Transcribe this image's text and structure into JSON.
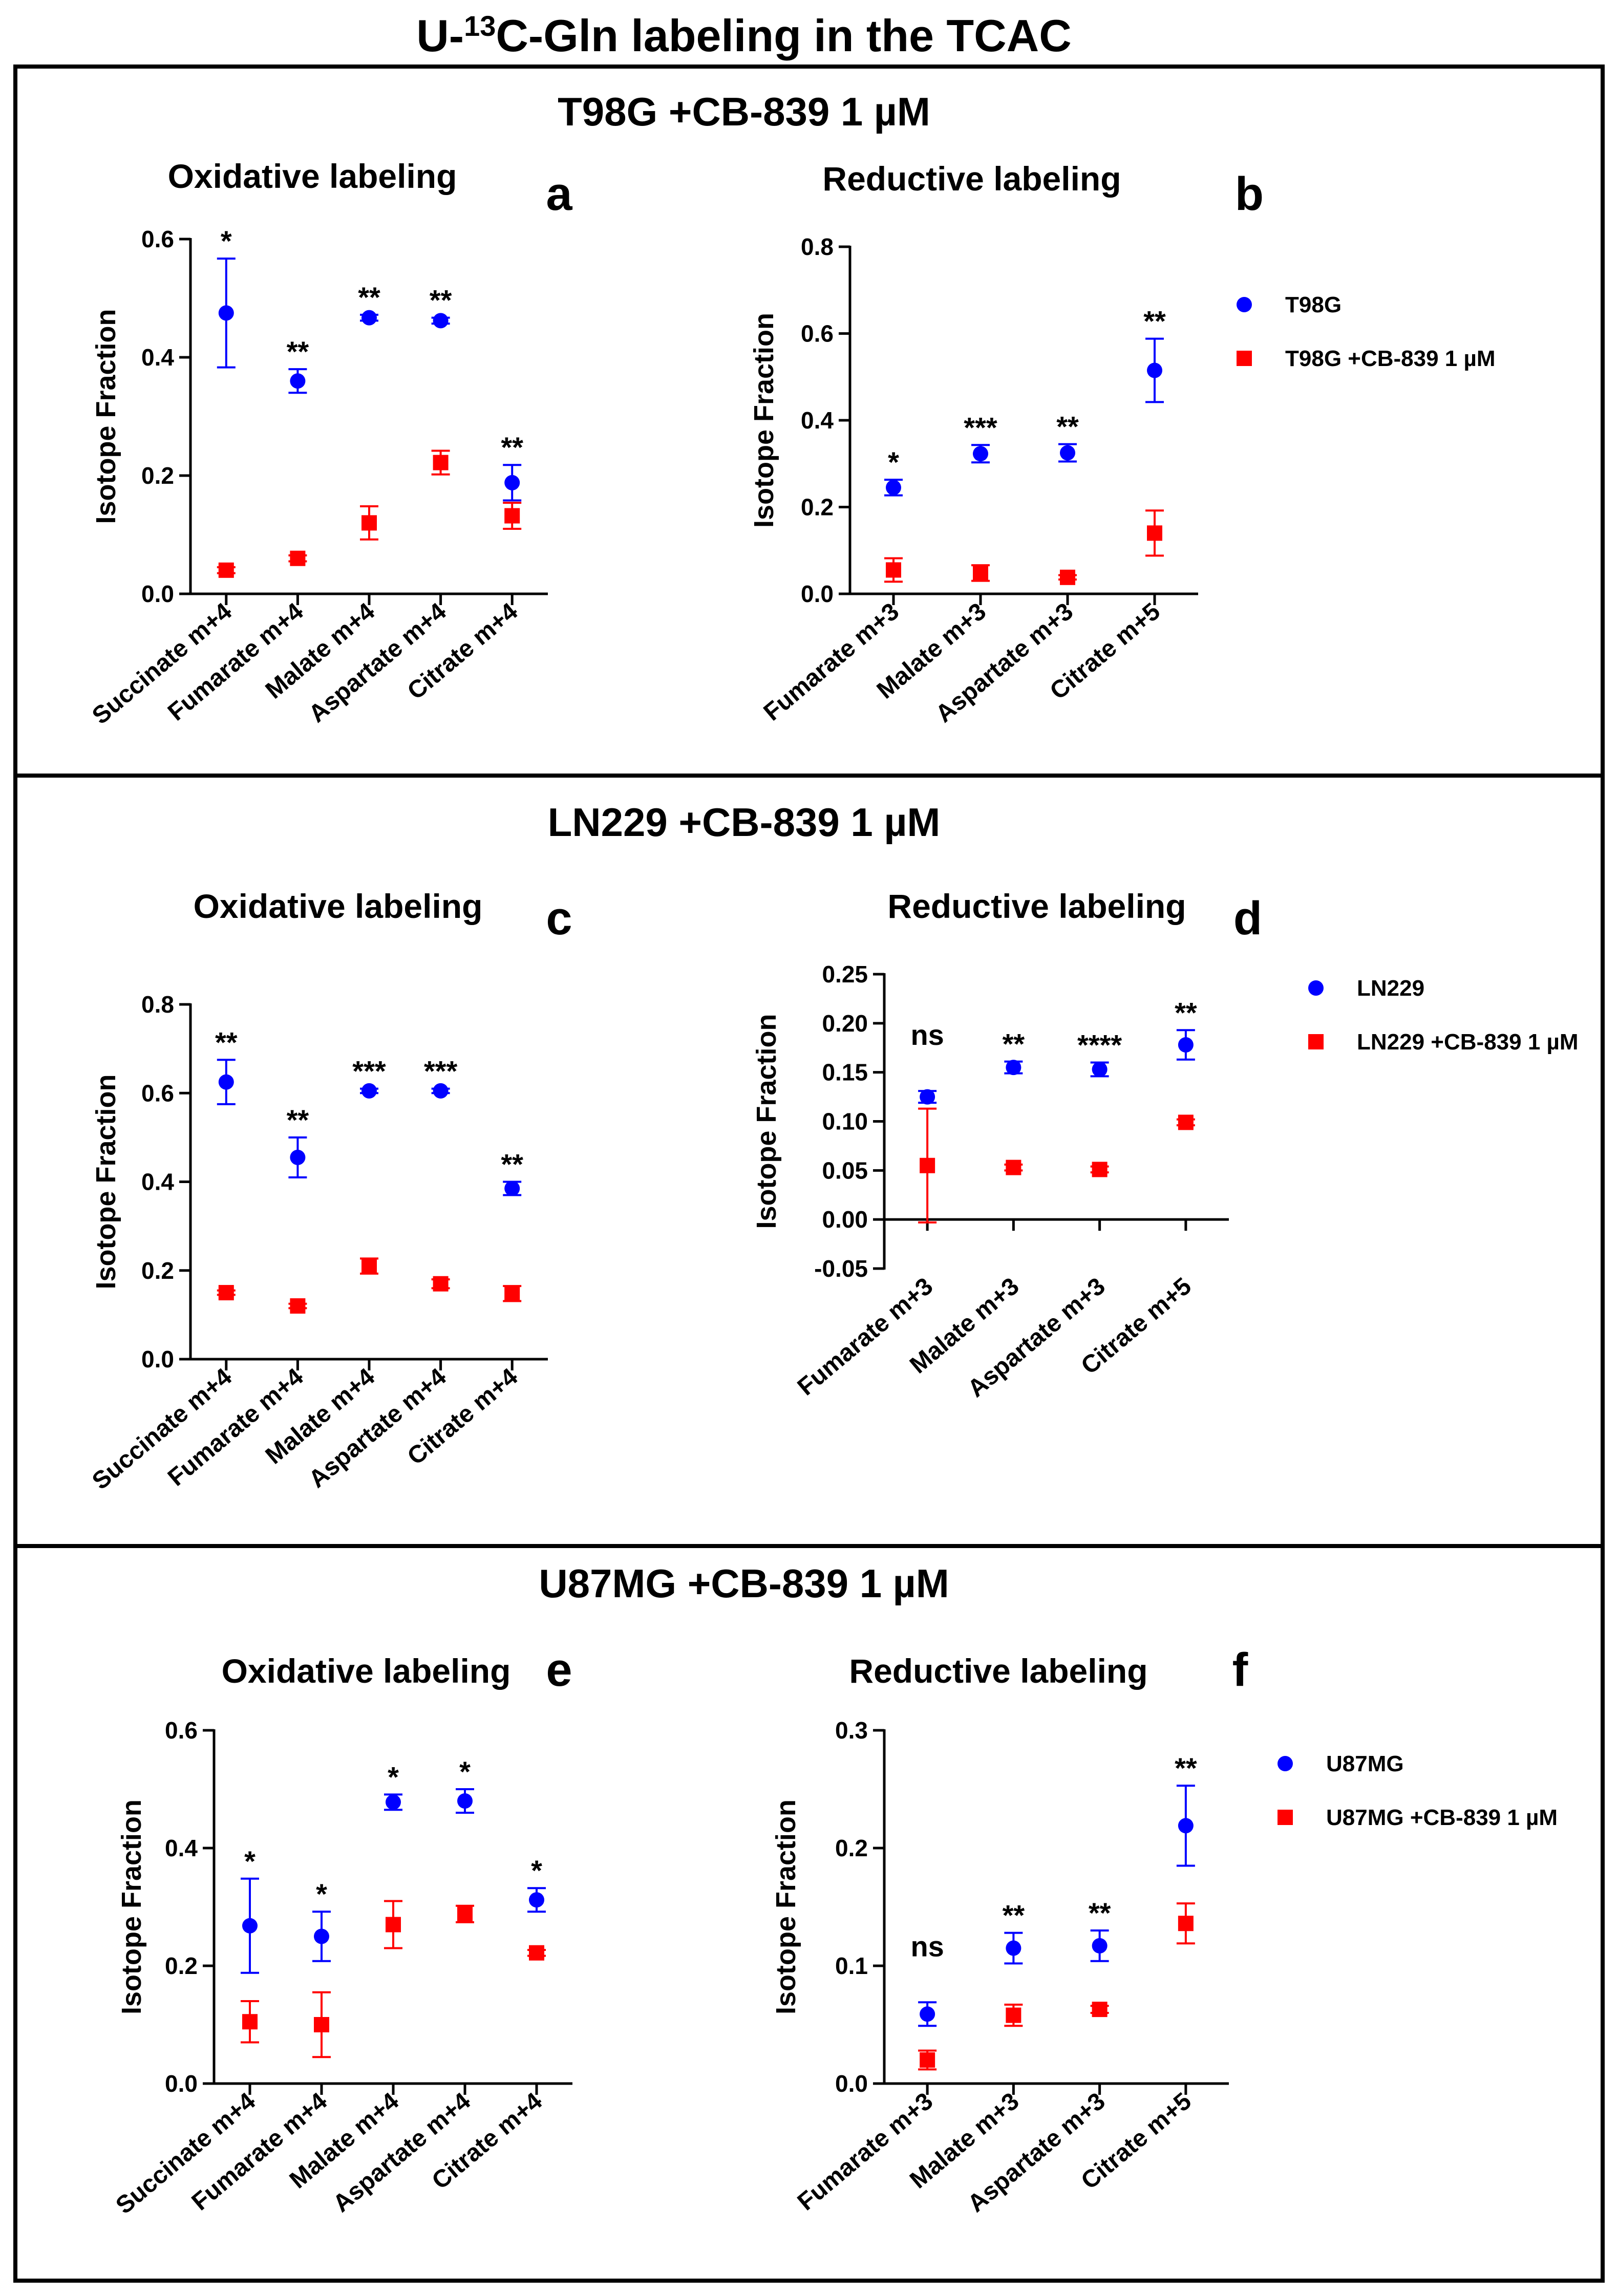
{
  "title": {
    "prefix": "U-",
    "sup": "13",
    "suffix": "C-Gln labeling in the TCAC"
  },
  "colors": {
    "control": "#0000ff",
    "treated": "#ff0000",
    "axis": "#000000"
  },
  "marker_shapes": {
    "control": "circle",
    "treated": "square"
  },
  "panels": [
    {
      "title": "T98G +CB-839 1 µM",
      "legend": [
        "T98G",
        "T98G +CB-839 1 µM"
      ],
      "charts": [
        {
          "letter": "a",
          "chart_data": {
            "type": "scatter",
            "title": "Oxidative labeling",
            "ylabel": "Isotope Fraction",
            "xlabel": "",
            "ylim": [
              0,
              0.6
            ],
            "yticks": [
              0,
              0.2,
              0.4,
              0.6
            ],
            "ytick_labels": [
              "0.0",
              "0.2",
              "0.4",
              "0.6"
            ],
            "categories": [
              "Succinate m+4",
              "Fumarate m+4",
              "Malate m+4",
              "Aspartate m+4",
              "Citrate m+4"
            ],
            "significance": [
              "*",
              "**",
              "**",
              "**",
              "**"
            ],
            "series": [
              {
                "name": "T98G",
                "values": [
                  0.475,
                  0.36,
                  0.467,
                  0.462,
                  0.188
                ],
                "errors": [
                  0.092,
                  0.02,
                  0.005,
                  0.005,
                  0.03
                ]
              },
              {
                "name": "T98G +CB-839 1 µM",
                "values": [
                  0.04,
                  0.06,
                  0.12,
                  0.222,
                  0.132
                ],
                "errors": [
                  0.005,
                  0.005,
                  0.028,
                  0.02,
                  0.022
                ]
              }
            ]
          }
        },
        {
          "letter": "b",
          "chart_data": {
            "type": "scatter",
            "title": "Reductive labeling",
            "ylabel": "Isotope Fraction",
            "xlabel": "",
            "ylim": [
              0,
              0.8
            ],
            "yticks": [
              0,
              0.2,
              0.4,
              0.6,
              0.8
            ],
            "ytick_labels": [
              "0.0",
              "0.2",
              "0.4",
              "0.6",
              "0.8"
            ],
            "categories": [
              "Fumarate m+3",
              "Malate m+3",
              "Aspartate m+3",
              "Citrate m+5"
            ],
            "significance": [
              "*",
              "***",
              "**",
              "**"
            ],
            "series": [
              {
                "name": "T98G",
                "values": [
                  0.245,
                  0.323,
                  0.325,
                  0.515
                ],
                "errors": [
                  0.018,
                  0.02,
                  0.02,
                  0.073
                ]
              },
              {
                "name": "T98G +CB-839 1 µM",
                "values": [
                  0.055,
                  0.048,
                  0.038,
                  0.14
                ],
                "errors": [
                  0.027,
                  0.018,
                  0.005,
                  0.052
                ]
              }
            ]
          }
        }
      ]
    },
    {
      "title": "LN229 +CB-839 1 µM",
      "legend": [
        "LN229",
        "LN229 +CB-839 1 µM"
      ],
      "charts": [
        {
          "letter": "c",
          "chart_data": {
            "type": "scatter",
            "title": "Oxidative labeling",
            "ylabel": "Isotope Fraction",
            "xlabel": "",
            "ylim": [
              0,
              0.8
            ],
            "yticks": [
              0,
              0.2,
              0.4,
              0.6,
              0.8
            ],
            "ytick_labels": [
              "0.0",
              "0.2",
              "0.4",
              "0.6",
              "0.8"
            ],
            "categories": [
              "Succinate m+4",
              "Fumarate m+4",
              "Malate m+4",
              "Aspartate m+4",
              "Citrate m+4"
            ],
            "significance": [
              "**",
              "**",
              "***",
              "***",
              "**"
            ],
            "series": [
              {
                "name": "LN229",
                "values": [
                  0.625,
                  0.455,
                  0.605,
                  0.605,
                  0.385
                ],
                "errors": [
                  0.05,
                  0.045,
                  0.005,
                  0.005,
                  0.015
                ]
              },
              {
                "name": "LN229 +CB-839 1 µM",
                "values": [
                  0.15,
                  0.12,
                  0.21,
                  0.17,
                  0.148
                ],
                "errors": [
                  0.005,
                  0.005,
                  0.017,
                  0.01,
                  0.017
                ]
              }
            ]
          }
        },
        {
          "letter": "d",
          "chart_data": {
            "type": "scatter",
            "title": "Reductive labeling",
            "ylabel": "Isotope Fraction",
            "xlabel": "",
            "ylim": [
              -0.05,
              0.25
            ],
            "yticks": [
              -0.05,
              0,
              0.05,
              0.1,
              0.15,
              0.2,
              0.25
            ],
            "ytick_labels": [
              "-0.05",
              "0.00",
              "0.05",
              "0.10",
              "0.15",
              "0.20",
              "0.25"
            ],
            "categories": [
              "Fumarate m+3",
              "Malate m+3",
              "Aspartate m+3",
              "Citrate m+5"
            ],
            "significance": [
              "ns",
              "**",
              "****",
              "**"
            ],
            "series": [
              {
                "name": "LN229",
                "values": [
                  0.125,
                  0.155,
                  0.153,
                  0.178
                ],
                "errors": [
                  0.006,
                  0.006,
                  0.007,
                  0.015
                ]
              },
              {
                "name": "LN229 +CB-839 1 µM",
                "values": [
                  0.055,
                  0.053,
                  0.051,
                  0.099
                ],
                "errors": [
                  0.058,
                  0.003,
                  0.003,
                  0.003
                ]
              }
            ]
          }
        }
      ]
    },
    {
      "title": "U87MG +CB-839 1 µM",
      "legend": [
        "U87MG",
        "U87MG +CB-839 1 µM"
      ],
      "charts": [
        {
          "letter": "e",
          "chart_data": {
            "type": "scatter",
            "title": "Oxidative labeling",
            "ylabel": "Isotope Fraction",
            "xlabel": "",
            "ylim": [
              0,
              0.6
            ],
            "yticks": [
              0,
              0.2,
              0.4,
              0.6
            ],
            "ytick_labels": [
              "0.0",
              "0.2",
              "0.4",
              "0.6"
            ],
            "categories": [
              "Succinate m+4",
              "Fumarate m+4",
              "Malate m+4",
              "Aspartate m+4",
              "Citrate m+4"
            ],
            "significance": [
              "*",
              "*",
              "*",
              "*",
              "*"
            ],
            "series": [
              {
                "name": "U87MG",
                "values": [
                  0.268,
                  0.25,
                  0.478,
                  0.48,
                  0.312
                ],
                "errors": [
                  0.08,
                  0.042,
                  0.013,
                  0.02,
                  0.02
                ]
              },
              {
                "name": "U87MG +CB-839 1 µM",
                "values": [
                  0.105,
                  0.1,
                  0.27,
                  0.288,
                  0.222
                ],
                "errors": [
                  0.035,
                  0.055,
                  0.04,
                  0.014,
                  0.005
                ]
              }
            ]
          }
        },
        {
          "letter": "f",
          "chart_data": {
            "type": "scatter",
            "title": "Reductive labeling",
            "ylabel": "Isotope Fraction",
            "xlabel": "",
            "ylim": [
              0,
              0.3
            ],
            "yticks": [
              0,
              0.1,
              0.2,
              0.3
            ],
            "ytick_labels": [
              "0.0",
              "0.1",
              "0.2",
              "0.3"
            ],
            "categories": [
              "Fumarate m+3",
              "Malate m+3",
              "Aspartate m+3",
              "Citrate m+5"
            ],
            "significance": [
              "ns",
              "**",
              "**",
              "**"
            ],
            "series": [
              {
                "name": "U87MG",
                "values": [
                  0.059,
                  0.115,
                  0.117,
                  0.219
                ],
                "errors": [
                  0.01,
                  0.013,
                  0.013,
                  0.034
                ]
              },
              {
                "name": "U87MG +CB-839 1 µM",
                "values": [
                  0.02,
                  0.058,
                  0.063,
                  0.136
                ],
                "errors": [
                  0.008,
                  0.009,
                  0.003,
                  0.017
                ]
              }
            ]
          }
        }
      ]
    }
  ]
}
